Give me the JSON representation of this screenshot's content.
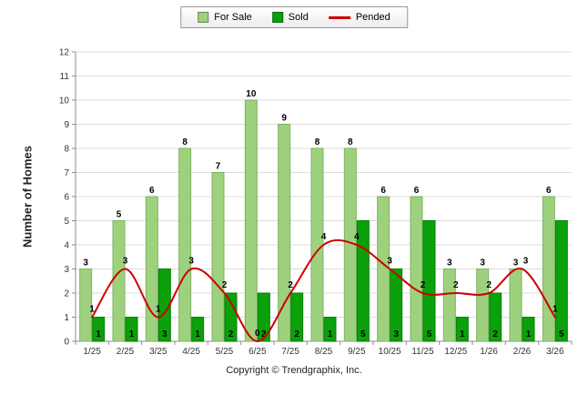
{
  "legend": {
    "for_sale_label": "For Sale",
    "sold_label": "Sold",
    "pended_label": "Pended"
  },
  "footer": {
    "copyright": "Copyright © Trendgraphix, Inc."
  },
  "colors": {
    "for_sale": "#9ED17E",
    "sold": "#0AA10A",
    "pended": "#CC0000",
    "grid": "#DCDCDC",
    "axis": "#8C8C8C"
  },
  "chart_data": {
    "type": "bar",
    "overlay": "line",
    "title": "",
    "xlabel": "",
    "ylabel": "Number of Homes",
    "ylim": [
      0,
      12
    ],
    "ytick_step": 1,
    "grid": "horizontal",
    "legend_position": "top-center",
    "categories": [
      "1/25",
      "2/25",
      "3/25",
      "4/25",
      "5/25",
      "6/25",
      "7/25",
      "8/25",
      "9/25",
      "10/25",
      "11/25",
      "12/25",
      "1/26",
      "2/26",
      "3/26"
    ],
    "series": [
      {
        "name": "For Sale",
        "type": "bar",
        "color": "#9ED17E",
        "values": [
          3,
          5,
          6,
          8,
          7,
          10,
          9,
          8,
          8,
          6,
          6,
          3,
          3,
          3,
          6
        ]
      },
      {
        "name": "Sold",
        "type": "bar",
        "color": "#0AA10A",
        "values": [
          1,
          1,
          3,
          1,
          2,
          2,
          2,
          1,
          5,
          3,
          5,
          1,
          2,
          1,
          5
        ]
      },
      {
        "name": "Pended",
        "type": "line",
        "color": "#CC0000",
        "values": [
          1,
          3,
          1,
          3,
          2,
          0,
          2,
          4,
          4,
          3,
          2,
          2,
          2,
          3,
          1
        ]
      }
    ]
  }
}
